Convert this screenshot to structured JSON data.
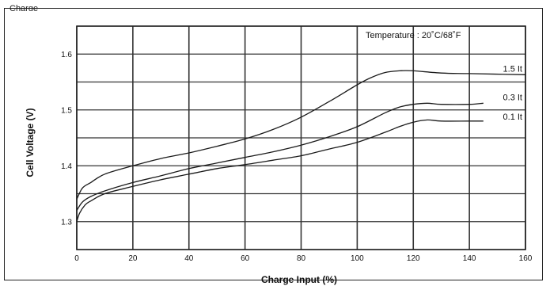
{
  "caption": "Charge",
  "chart_data": {
    "type": "line",
    "xlabel": "Charge Input (%)",
    "ylabel": "Cell Voltage (V)",
    "annotation": "Temperature : 20˚C/68˚F",
    "xlim": [
      0,
      160
    ],
    "ylim": [
      1.25,
      1.65
    ],
    "xticks": [
      "0",
      "20",
      "40",
      "60",
      "80",
      "100",
      "120",
      "140",
      "160"
    ],
    "yticks": [
      "1.3",
      "1.4",
      "1.5",
      "1.6"
    ],
    "grid": true,
    "series": [
      {
        "name": "1.5 It",
        "x": [
          0,
          2,
          5,
          10,
          20,
          30,
          40,
          50,
          60,
          70,
          80,
          90,
          100,
          105,
          110,
          115,
          120,
          130,
          140,
          160
        ],
        "values": [
          1.34,
          1.36,
          1.37,
          1.385,
          1.4,
          1.413,
          1.423,
          1.435,
          1.448,
          1.465,
          1.487,
          1.515,
          1.545,
          1.558,
          1.567,
          1.57,
          1.57,
          1.566,
          1.565,
          1.563
        ]
      },
      {
        "name": "0.3 It",
        "x": [
          0,
          2,
          5,
          10,
          20,
          30,
          40,
          50,
          60,
          70,
          80,
          90,
          100,
          110,
          115,
          120,
          125,
          130,
          140,
          145
        ],
        "values": [
          1.32,
          1.335,
          1.345,
          1.355,
          1.37,
          1.382,
          1.395,
          1.405,
          1.415,
          1.425,
          1.437,
          1.452,
          1.47,
          1.495,
          1.505,
          1.51,
          1.512,
          1.51,
          1.51,
          1.512
        ]
      },
      {
        "name": "0.1 It",
        "x": [
          0,
          1,
          3,
          5,
          10,
          20,
          30,
          40,
          50,
          60,
          70,
          80,
          90,
          100,
          110,
          115,
          120,
          125,
          130,
          140,
          145
        ],
        "values": [
          1.3,
          1.315,
          1.33,
          1.337,
          1.35,
          1.363,
          1.375,
          1.385,
          1.395,
          1.402,
          1.41,
          1.418,
          1.43,
          1.442,
          1.46,
          1.47,
          1.478,
          1.482,
          1.48,
          1.48,
          1.48
        ]
      }
    ],
    "colors": {
      "line": "#1a1a1a",
      "grid": "#333333",
      "background": "#ffffff"
    }
  }
}
